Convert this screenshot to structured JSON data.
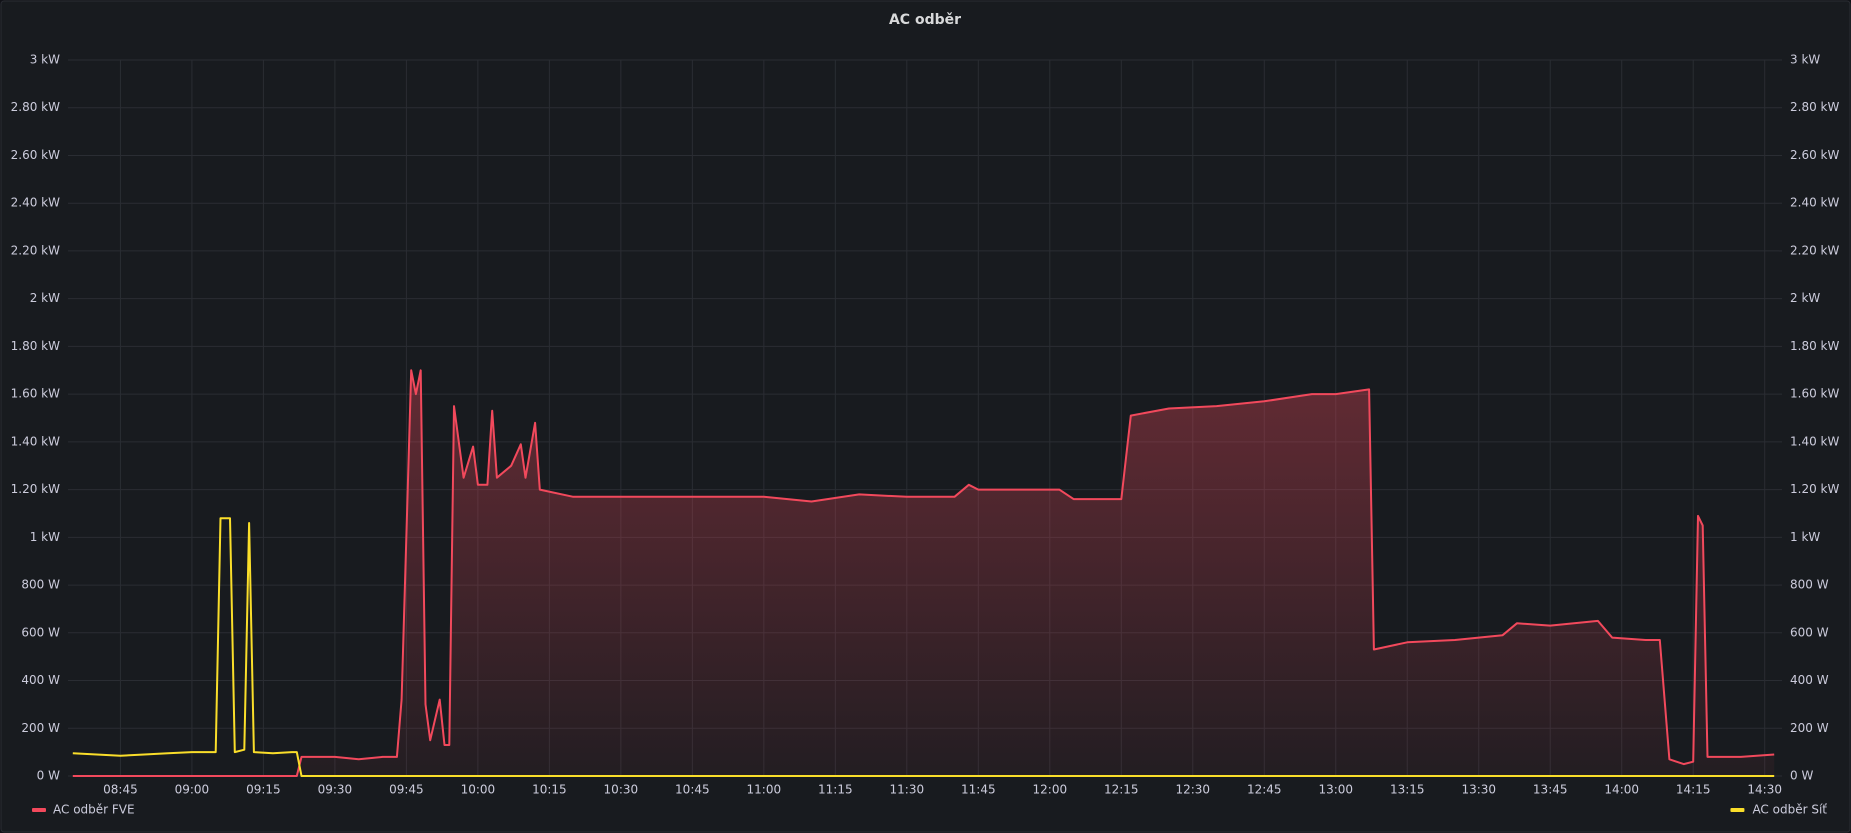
{
  "chart_data": {
    "type": "line",
    "title": "AC odběr",
    "x": [
      "08:35",
      "08:40",
      "08:45",
      "08:50",
      "08:55",
      "09:00",
      "09:05",
      "09:06",
      "09:08",
      "09:09",
      "09:11",
      "09:12",
      "09:13",
      "09:17",
      "09:21",
      "09:22",
      "09:23",
      "09:30",
      "09:35",
      "09:40",
      "09:43",
      "09:44",
      "09:46",
      "09:47",
      "09:48",
      "09:49",
      "09:50",
      "09:52",
      "09:53",
      "09:54",
      "09:55",
      "09:57",
      "09:59",
      "10:00",
      "10:02",
      "10:03",
      "10:04",
      "10:07",
      "10:09",
      "10:10",
      "10:12",
      "10:13",
      "10:20",
      "10:30",
      "10:40",
      "10:50",
      "11:00",
      "11:10",
      "11:20",
      "11:30",
      "11:40",
      "11:43",
      "11:45",
      "11:55",
      "12:02",
      "12:05",
      "12:15",
      "12:17",
      "12:25",
      "12:35",
      "12:45",
      "12:55",
      "13:00",
      "13:07",
      "13:08",
      "13:15",
      "13:25",
      "13:30",
      "13:35",
      "13:38",
      "13:45",
      "13:55",
      "13:58",
      "14:05",
      "14:08",
      "14:10",
      "14:13",
      "14:15",
      "14:16",
      "14:17",
      "14:18",
      "14:25",
      "14:32"
    ],
    "series": [
      {
        "name": "AC odběr FVE",
        "color": "#f2495c",
        "fill": true,
        "values": [
          0,
          0,
          0,
          0,
          0,
          0,
          0,
          0,
          0,
          0,
          0,
          0,
          0,
          0,
          0,
          0,
          80,
          80,
          70,
          80,
          80,
          320,
          1700,
          1600,
          1700,
          300,
          150,
          320,
          130,
          130,
          1550,
          1250,
          1380,
          1220,
          1220,
          1530,
          1250,
          1300,
          1390,
          1250,
          1480,
          1200,
          1170,
          1170,
          1170,
          1170,
          1170,
          1150,
          1180,
          1170,
          1170,
          1220,
          1200,
          1200,
          1200,
          1160,
          1160,
          1510,
          1540,
          1550,
          1570,
          1600,
          1600,
          1620,
          530,
          560,
          570,
          580,
          590,
          640,
          630,
          650,
          580,
          570,
          570,
          70,
          50,
          60,
          1090,
          1050,
          80,
          80,
          90
        ]
      },
      {
        "name": "AC odběr Síť",
        "color": "#fade2a",
        "axis": "y2",
        "fill": false,
        "values": [
          95,
          90,
          85,
          90,
          95,
          100,
          100,
          1080,
          1080,
          100,
          110,
          1060,
          100,
          95,
          100,
          100,
          0,
          0,
          0,
          0,
          0,
          0,
          0,
          0,
          0,
          0,
          0,
          0,
          0,
          0,
          0,
          0,
          0,
          0,
          0,
          0,
          0,
          0,
          0,
          0,
          0,
          0,
          0,
          0,
          0,
          0,
          0,
          0,
          0,
          0,
          0,
          0,
          0,
          0,
          0,
          0,
          0,
          0,
          0,
          0,
          0,
          0,
          0,
          0,
          0,
          0,
          0,
          0,
          0,
          0,
          0,
          0,
          0,
          0,
          0,
          0,
          0,
          0,
          0,
          0,
          0,
          0,
          0
        ]
      }
    ],
    "xlim": [
      "08:34",
      "14:33"
    ],
    "xticks": [
      "08:45",
      "09:00",
      "09:15",
      "09:30",
      "09:45",
      "10:00",
      "10:15",
      "10:30",
      "10:45",
      "11:00",
      "11:15",
      "11:30",
      "11:45",
      "12:00",
      "12:15",
      "12:30",
      "12:45",
      "13:00",
      "13:15",
      "13:30",
      "13:45",
      "14:00",
      "14:15",
      "14:30"
    ],
    "ylim": [
      0,
      3000
    ],
    "yticks": [
      {
        "value": 0,
        "label": "0 W"
      },
      {
        "value": 200,
        "label": "200 W"
      },
      {
        "value": 400,
        "label": "400 W"
      },
      {
        "value": 600,
        "label": "600 W"
      },
      {
        "value": 800,
        "label": "800 W"
      },
      {
        "value": 1000,
        "label": "1 kW"
      },
      {
        "value": 1200,
        "label": "1.20 kW"
      },
      {
        "value": 1400,
        "label": "1.40 kW"
      },
      {
        "value": 1600,
        "label": "1.60 kW"
      },
      {
        "value": 1800,
        "label": "1.80 kW"
      },
      {
        "value": 2000,
        "label": "2 kW"
      },
      {
        "value": 2200,
        "label": "2.20 kW"
      },
      {
        "value": 2400,
        "label": "2.40 kW"
      },
      {
        "value": 2600,
        "label": "2.60 kW"
      },
      {
        "value": 2800,
        "label": "2.80 kW"
      },
      {
        "value": 3000,
        "label": "3 kW"
      }
    ],
    "y2lim": [
      0,
      3000
    ],
    "y2ticks": [
      {
        "value": 0,
        "label": "0 W"
      },
      {
        "value": 200,
        "label": "200 W"
      },
      {
        "value": 400,
        "label": "400 W"
      },
      {
        "value": 600,
        "label": "600 W"
      },
      {
        "value": 800,
        "label": "800 W"
      },
      {
        "value": 1000,
        "label": "1 kW"
      },
      {
        "value": 1200,
        "label": "1.20 kW"
      },
      {
        "value": 1400,
        "label": "1.40 kW"
      },
      {
        "value": 1600,
        "label": "1.60 kW"
      },
      {
        "value": 1800,
        "label": "1.80 kW"
      },
      {
        "value": 2000,
        "label": "2 kW"
      },
      {
        "value": 2200,
        "label": "2.20 kW"
      },
      {
        "value": 2400,
        "label": "2.40 kW"
      },
      {
        "value": 2600,
        "label": "2.60 kW"
      },
      {
        "value": 2800,
        "label": "2.80 kW"
      },
      {
        "value": 3000,
        "label": "3 kW"
      }
    ],
    "grid": true,
    "legend": "bottom"
  }
}
